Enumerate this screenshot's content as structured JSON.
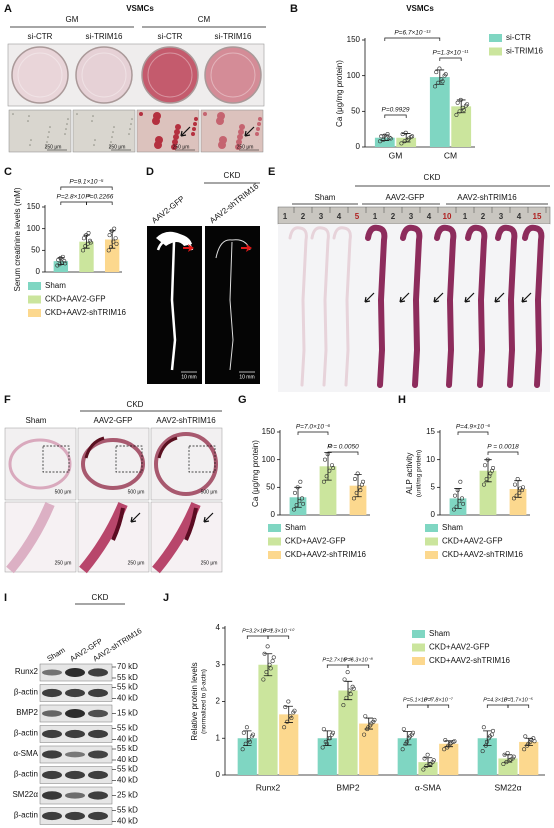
{
  "chart_data": [
    {
      "type": "bar",
      "panel": "B",
      "title": "VSMCs",
      "y_label": "Ca (μg/mg protein)",
      "categories": [
        "GM",
        "CM"
      ],
      "series": [
        {
          "name": "si-CTR",
          "color": "#7fd6c2",
          "values": [
            13,
            98
          ],
          "errors": [
            4,
            10
          ],
          "points": [
            [
              8,
              10,
              12,
              13,
              15,
              16,
              18,
              12
            ],
            [
              85,
              90,
              95,
              100,
              105,
              110,
              92,
              102
            ]
          ]
        },
        {
          "name": "si-TRIM16",
          "color": "#cbe59d",
          "values": [
            13,
            57
          ],
          "errors": [
            6,
            9
          ],
          "points": [
            [
              5,
              8,
              10,
              14,
              18,
              20,
              12,
              15
            ],
            [
              45,
              50,
              55,
              58,
              62,
              66,
              52,
              60
            ]
          ]
        }
      ],
      "ylim": [
        0,
        150
      ],
      "yticks": [
        0,
        50,
        100,
        150
      ],
      "annotations": [
        "P=0.9929",
        "P=6.7×10⁻¹³",
        "P=1.3×10⁻¹¹"
      ]
    },
    {
      "type": "bar",
      "panel": "C",
      "y_label": "Serum creatinine levels (mM)",
      "categories": [
        "Sham",
        "CKD+AAV2-GFP",
        "CKD+AAV2-shTRIM16"
      ],
      "colors": [
        "#7fd6c2",
        "#cbe59d",
        "#fcd88e"
      ],
      "values": [
        25,
        70,
        75
      ],
      "errors": [
        8,
        15,
        20
      ],
      "points": [
        [
          15,
          18,
          22,
          25,
          28,
          32,
          35,
          20
        ],
        [
          50,
          60,
          65,
          72,
          78,
          85,
          90,
          68
        ],
        [
          50,
          58,
          70,
          78,
          85,
          95,
          100,
          65
        ]
      ],
      "ylim": [
        0,
        150
      ],
      "yticks": [
        0,
        50,
        100,
        150
      ],
      "annotations": [
        "P=9.1×10⁻⁵",
        "P=2.8×10⁻⁶",
        "P=0.2266"
      ]
    },
    {
      "type": "bar",
      "panel": "G",
      "y_label": "Ca (μg/mg protein)",
      "categories": [
        "Sham",
        "CKD+AAV2-GFP",
        "CKD+AAV2-shTRIM16"
      ],
      "colors": [
        "#7fd6c2",
        "#cbe59d",
        "#fcd88e"
      ],
      "values": [
        32,
        88,
        53
      ],
      "errors": [
        18,
        25,
        20
      ],
      "points": [
        [
          10,
          18,
          25,
          30,
          40,
          50,
          60,
          20
        ],
        [
          60,
          70,
          80,
          90,
          100,
          110,
          125,
          85
        ],
        [
          30,
          40,
          50,
          55,
          65,
          75,
          45,
          60
        ]
      ],
      "ylim": [
        0,
        150
      ],
      "yticks": [
        0,
        50,
        100,
        150
      ],
      "annotations": [
        "P=7.0×10⁻⁶",
        "P = 0.0050"
      ]
    },
    {
      "type": "bar",
      "panel": "H",
      "y_label": [
        "ALP activity",
        "(unit/mg protein)"
      ],
      "categories": [
        "Sham",
        "CKD+AAV2-GFP",
        "CKD+AAV2-shTRIM16"
      ],
      "colors": [
        "#7fd6c2",
        "#cbe59d",
        "#fcd88e"
      ],
      "values": [
        3,
        8,
        4.7
      ],
      "errors": [
        1.8,
        2,
        1.5
      ],
      "points": [
        [
          1,
          1.5,
          2.5,
          3,
          3.5,
          4.5,
          6,
          2
        ],
        [
          5.5,
          6.5,
          7,
          8,
          9,
          10,
          7.5,
          8.5
        ],
        [
          3,
          3.5,
          4,
          4.5,
          5.5,
          6.5,
          4.8,
          5
        ]
      ],
      "ylim": [
        0,
        15
      ],
      "yticks": [
        0,
        5,
        10,
        15
      ],
      "annotations": [
        "P=4.9×10⁻⁶",
        "P = 0.0018"
      ]
    },
    {
      "type": "bar",
      "panel": "J",
      "y_label": [
        "Relative protein levels",
        "(normalized to β-actin)"
      ],
      "categories": [
        "Runx2",
        "BMP2",
        "α-SMA",
        "SM22α"
      ],
      "series": [
        {
          "name": "Sham",
          "color": "#7fd6c2",
          "values": [
            1,
            1,
            1,
            1
          ],
          "errors": [
            0.2,
            0.2,
            0.18,
            0.2
          ],
          "points": [
            [
              0.7,
              0.85,
              0.95,
              1.05,
              1.15,
              1.3,
              0.9,
              1.1
            ],
            [
              0.75,
              0.9,
              1.0,
              1.1,
              1.25,
              0.85,
              1.0,
              1.15
            ],
            [
              0.7,
              0.85,
              1.0,
              1.1,
              1.25,
              0.9,
              1.05,
              1.15
            ],
            [
              0.65,
              0.8,
              1.0,
              1.1,
              1.3,
              0.9,
              1.05,
              1.2
            ]
          ]
        },
        {
          "name": "CKD+AAV2-GFP",
          "color": "#cbe59d",
          "values": [
            3,
            2.3,
            0.35,
            0.45
          ],
          "errors": [
            0.3,
            0.25,
            0.12,
            0.1
          ],
          "points": [
            [
              2.6,
              2.8,
              3.0,
              3.1,
              3.3,
              3.5,
              2.9,
              3.2
            ],
            [
              1.9,
              2.1,
              2.3,
              2.4,
              2.6,
              2.8,
              2.2,
              2.35
            ],
            [
              0.15,
              0.25,
              0.3,
              0.35,
              0.45,
              0.55,
              0.3,
              0.4
            ],
            [
              0.3,
              0.35,
              0.4,
              0.45,
              0.55,
              0.6,
              0.42,
              0.5
            ]
          ]
        },
        {
          "name": "CKD+AAV2-shTRIM16",
          "color": "#fcd88e",
          "values": [
            1.65,
            1.4,
            0.85,
            0.9
          ],
          "errors": [
            0.22,
            0.15,
            0.08,
            0.1
          ],
          "points": [
            [
              1.3,
              1.45,
              1.6,
              1.7,
              1.85,
              2.0,
              1.55,
              1.75
            ],
            [
              1.1,
              1.25,
              1.35,
              1.45,
              1.6,
              1.3,
              1.4,
              1.5
            ],
            [
              0.7,
              0.75,
              0.85,
              0.9,
              0.95,
              0.8,
              0.88,
              0.92
            ],
            [
              0.7,
              0.8,
              0.9,
              1.0,
              1.05,
              0.85,
              0.95,
              0.92
            ]
          ]
        }
      ],
      "ylim": [
        0,
        4
      ],
      "yticks": [
        0,
        1,
        2,
        3,
        4
      ],
      "annotations": [
        "P=3.2×10⁻¹⁴",
        "P=1.3×10⁻¹⁰",
        "P=2.7×10⁻¹²",
        "P=6.3×10⁻⁸",
        "P=5.1×10⁻⁸",
        "P=7.8×10⁻⁷",
        "P=4.3×10⁻⁷",
        "P=1.7×10⁻⁵"
      ]
    }
  ],
  "figure": {
    "panel_labels": [
      "A",
      "B",
      "C",
      "D",
      "E",
      "F",
      "G",
      "H",
      "I",
      "J"
    ],
    "A": {
      "title": "VSMCs",
      "groups": [
        "GM",
        "CM"
      ],
      "lanes": [
        "si-CTR",
        "si-TRIM16",
        "si-CTR",
        "si-TRIM16"
      ],
      "scale": [
        "250 μm",
        "250 μm",
        "250 μm",
        "250 μm"
      ]
    },
    "D": {
      "group": "CKD",
      "lanes": [
        "AAV2-GFP",
        "AAV2-shTRIM16"
      ],
      "scale": [
        "10 mm",
        "10 mm"
      ]
    },
    "E": {
      "group": "CKD",
      "lanes": [
        "Sham",
        "AAV2-GFP",
        "AAV2-shTRIM16"
      ],
      "ruler": [
        1,
        2,
        3,
        4,
        5,
        1,
        2,
        3,
        4,
        10,
        1,
        2,
        3,
        4,
        15
      ]
    },
    "F": {
      "group": "CKD",
      "lanes": [
        "Sham",
        "AAV2-GFP",
        "AAV2-shTRIM16"
      ],
      "scale_top": [
        "500 μm",
        "500 μm",
        "500 μm"
      ],
      "scale_bottom": [
        "250 μm",
        "250 μm",
        "250 μm"
      ]
    },
    "I": {
      "group": "CKD",
      "lanes": [
        "Sham",
        "AAV2-GFP",
        "AAV2-shTRIM16"
      ],
      "rows": [
        "Runx2",
        "β-actin",
        "BMP2",
        "β-actin",
        "α-SMA",
        "β-actin",
        "SM22α",
        "β-actin"
      ],
      "markers": [
        "70 kD",
        "55 kD",
        "55 kD",
        "40 kD",
        "15 kD",
        "55 kD",
        "40 kD",
        "55 kD",
        "40 kD",
        "55 kD",
        "40 kD",
        "25 kD",
        "55 kD",
        "40 kD"
      ]
    }
  }
}
